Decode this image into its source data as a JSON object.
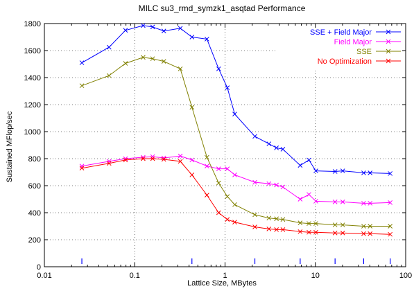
{
  "chart_data": {
    "type": "line",
    "title": "MILC su3_rmd_symzk1_asqtad Performance",
    "xlabel": "Lattice Size, MBytes",
    "ylabel": "Sustained MFlop/sec",
    "xscale": "log",
    "xlim": [
      0.01,
      100
    ],
    "ylim": [
      0,
      1800
    ],
    "xticks": [
      0.01,
      0.1,
      1,
      10,
      100
    ],
    "xtick_labels": [
      "0.01",
      "0.1",
      "1",
      "10",
      "100"
    ],
    "yticks": [
      0,
      200,
      400,
      600,
      800,
      1000,
      1200,
      1400,
      1600,
      1800
    ],
    "ytick_labels": [
      "0",
      "200",
      "400",
      "600",
      "800",
      "1000",
      "1200",
      "1400",
      "1600",
      "1800"
    ],
    "grid": "dotted",
    "legend_position": "top-right",
    "series": [
      {
        "name": "SSE + Field Major",
        "color": "#0000ff",
        "x": [
          0.026,
          0.052,
          0.079,
          0.124,
          0.158,
          0.21,
          0.32,
          0.43,
          0.63,
          0.85,
          1.06,
          1.28,
          2.14,
          3.06,
          3.71,
          4.37,
          6.79,
          8.49,
          10.12,
          16.53,
          20.08,
          34.26,
          40.38,
          67.36
        ],
        "y": [
          1510,
          1625,
          1750,
          1785,
          1775,
          1745,
          1765,
          1700,
          1685,
          1465,
          1325,
          1130,
          965,
          910,
          880,
          870,
          750,
          790,
          710,
          705,
          710,
          695,
          695,
          690
        ]
      },
      {
        "name": "Field Major",
        "color": "#ff00ff",
        "x": [
          0.026,
          0.052,
          0.079,
          0.124,
          0.158,
          0.21,
          0.32,
          0.43,
          0.63,
          0.85,
          1.06,
          1.28,
          2.14,
          3.06,
          3.71,
          4.37,
          6.79,
          8.49,
          10.12,
          16.53,
          20.08,
          34.26,
          40.38,
          67.36
        ],
        "y": [
          745,
          780,
          800,
          810,
          815,
          805,
          820,
          790,
          745,
          725,
          725,
          680,
          625,
          615,
          605,
          590,
          500,
          535,
          485,
          480,
          480,
          470,
          470,
          475
        ]
      },
      {
        "name": "SSE",
        "color": "#808000",
        "x": [
          0.026,
          0.052,
          0.079,
          0.124,
          0.158,
          0.21,
          0.32,
          0.43,
          0.63,
          0.85,
          1.06,
          1.28,
          2.14,
          3.06,
          3.71,
          4.37,
          6.79,
          8.49,
          10.12,
          16.53,
          20.08,
          34.26,
          40.38,
          67.36
        ],
        "y": [
          1340,
          1415,
          1505,
          1550,
          1540,
          1520,
          1465,
          1180,
          810,
          620,
          520,
          460,
          385,
          360,
          355,
          350,
          325,
          320,
          320,
          310,
          310,
          300,
          300,
          300
        ]
      },
      {
        "name": "No Optimization",
        "color": "#ff0000",
        "x": [
          0.026,
          0.052,
          0.079,
          0.124,
          0.158,
          0.21,
          0.32,
          0.43,
          0.63,
          0.85,
          1.06,
          1.28,
          2.14,
          3.06,
          3.71,
          4.37,
          6.79,
          8.49,
          10.12,
          16.53,
          20.08,
          34.26,
          40.38,
          67.36
        ],
        "y": [
          730,
          765,
          790,
          800,
          800,
          795,
          780,
          680,
          530,
          400,
          350,
          330,
          295,
          280,
          275,
          275,
          260,
          255,
          255,
          250,
          250,
          245,
          245,
          240
        ]
      }
    ],
    "marker_ticks_x": [
      0.026,
      0.43,
      2.14,
      6.79,
      16.53,
      34.26,
      67.36
    ],
    "marker_tick_color": "#0000ff"
  }
}
